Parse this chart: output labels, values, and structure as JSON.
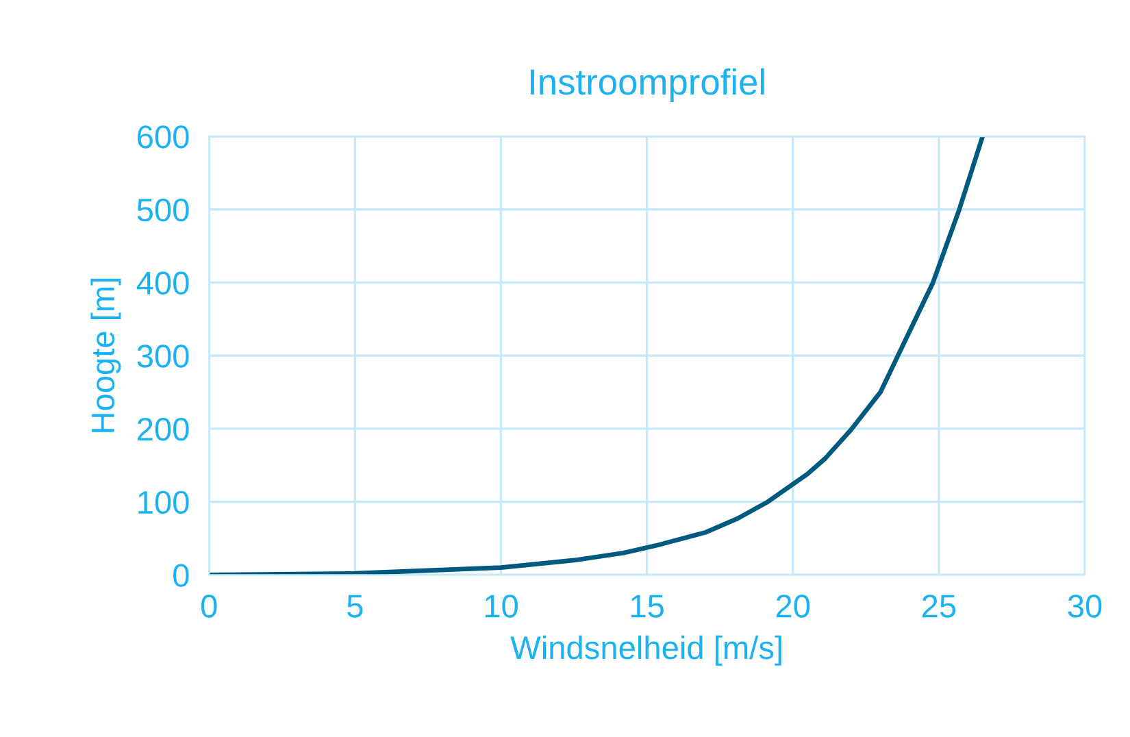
{
  "chart_data": {
    "type": "line",
    "title": "Instroomprofiel",
    "xlabel": "Windsnelheid [m/s]",
    "ylabel": "Hoogte [m]",
    "series": [
      {
        "color": "#005a80",
        "x": [
          0,
          5,
          10,
          12.5,
          14.2,
          15.3,
          17,
          18.1,
          19.1,
          20.5,
          21.1,
          22,
          23,
          23.6,
          24.8,
          25.7,
          26.5
        ],
        "values": [
          0,
          2,
          10,
          20,
          30,
          40,
          58,
          77,
          99,
          138,
          159,
          199,
          250,
          300,
          400,
          500,
          600
        ]
      }
    ],
    "xlim": [
      0,
      30
    ],
    "xticks": [
      0,
      5,
      10,
      15,
      20,
      25,
      30
    ],
    "ylim": [
      0,
      600
    ],
    "yticks": [
      0,
      100,
      200,
      300,
      400,
      500,
      600
    ],
    "grid": true,
    "legend": false,
    "marker": "none",
    "line_style": "solid"
  }
}
